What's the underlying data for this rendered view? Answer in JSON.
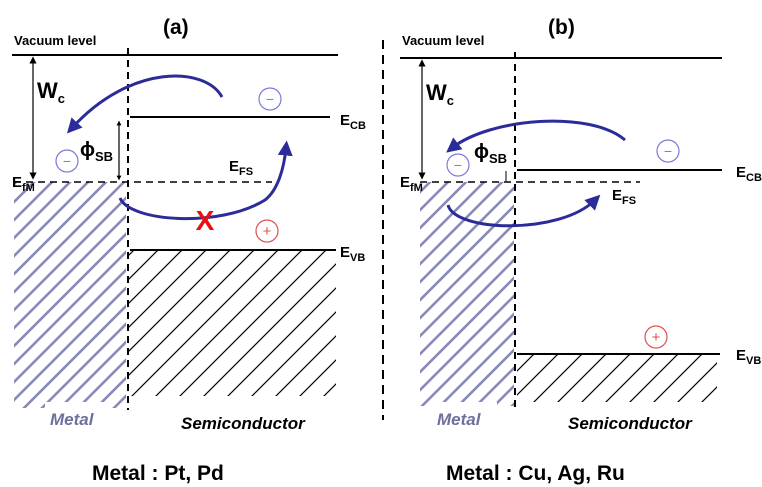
{
  "panels": [
    {
      "id": "a",
      "tag": "(a)",
      "vacuum_level": "Vacuum level",
      "wc": {
        "main": "W",
        "sub": "c"
      },
      "phi_sb": {
        "main": "ϕ",
        "sub": "SB"
      },
      "efm": {
        "main": "E",
        "sub": "fM"
      },
      "efs": {
        "main": "E",
        "sub": "FS"
      },
      "ecb": {
        "main": "E",
        "sub": "CB"
      },
      "evb": {
        "main": "E",
        "sub": "VB"
      },
      "electron_symbol": "−",
      "hole_symbol": "+",
      "blocked_symbol": "X",
      "metal_label": "Metal",
      "semiconductor_label": "Semiconductor",
      "caption": "Metal : Pt, Pd"
    },
    {
      "id": "b",
      "tag": "(b)",
      "vacuum_level": "Vacuum level",
      "wc": {
        "main": "W",
        "sub": "c"
      },
      "phi_sb": {
        "main": "ϕ",
        "sub": "SB"
      },
      "efm": {
        "main": "E",
        "sub": "fM"
      },
      "efs": {
        "main": "E",
        "sub": "FS"
      },
      "ecb": {
        "main": "E",
        "sub": "CB"
      },
      "evb": {
        "main": "E",
        "sub": "VB"
      },
      "electron_symbol": "−",
      "hole_symbol": "+",
      "metal_label": "Metal",
      "semiconductor_label": "Semiconductor",
      "caption": "Metal : Cu, Ag, Ru"
    }
  ],
  "colors": {
    "arrow": "#2b2b9a",
    "electron": "#7a7ad8",
    "hole": "#e05050",
    "blocked": "#e81010",
    "metal_hatch": "#8a8ab8",
    "semi_hatch": "#000000"
  }
}
